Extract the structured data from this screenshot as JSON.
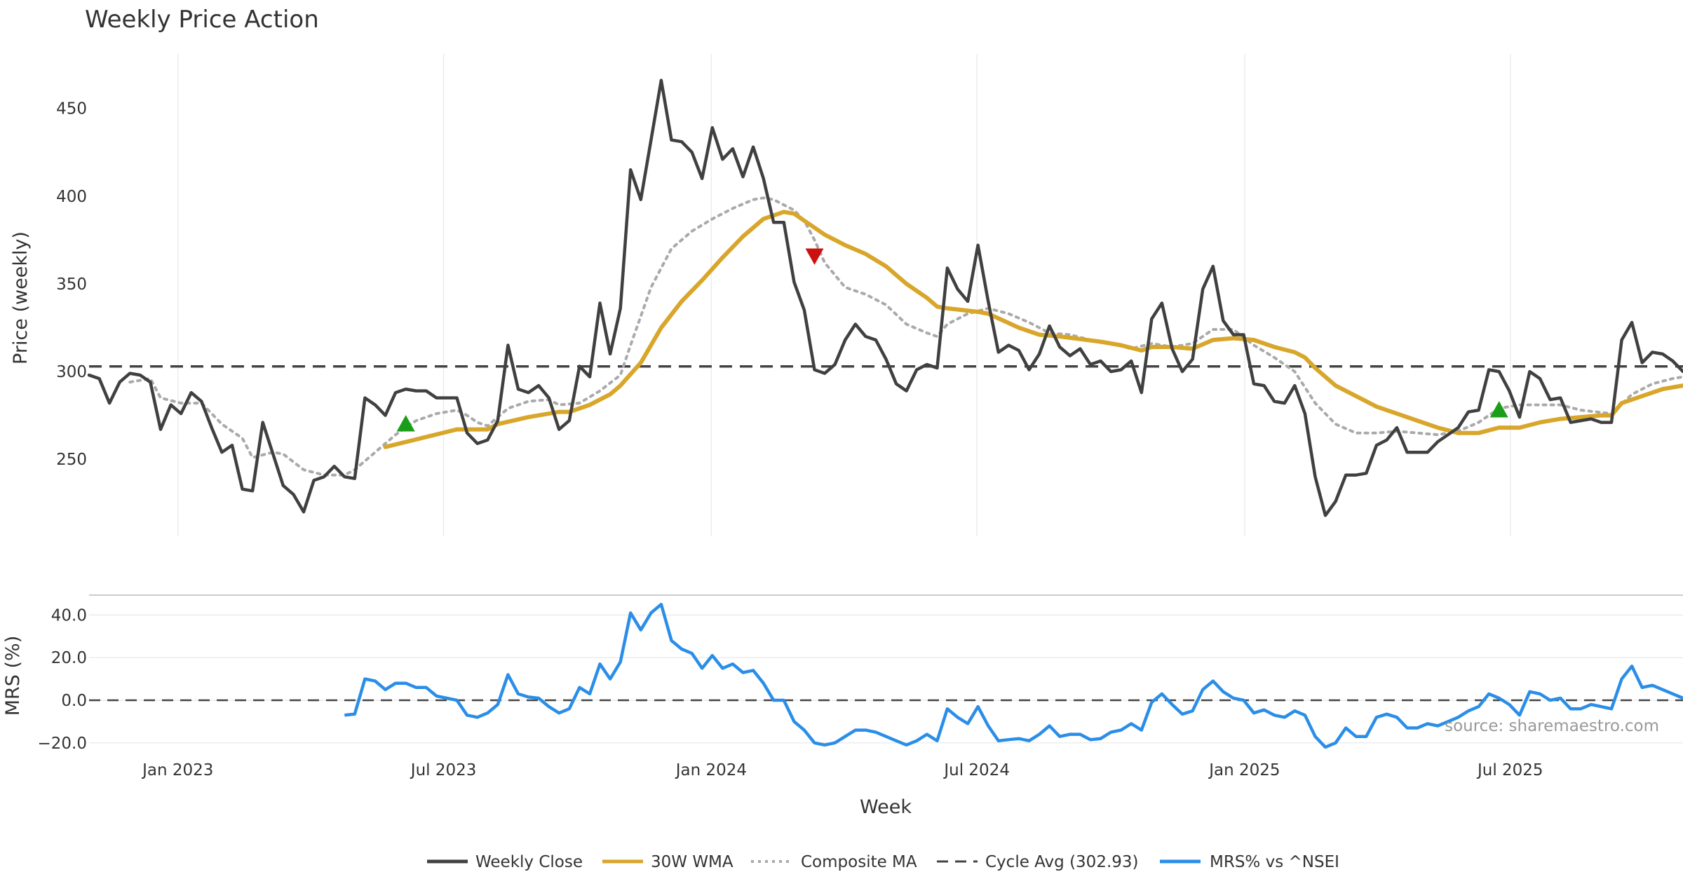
{
  "chart_data": [
    {
      "type": "line",
      "title": "Weekly Price Action",
      "ylabel": "Price (weekly)",
      "ylim": [
        210,
        475
      ],
      "yticks": [
        250,
        300,
        350,
        400,
        450
      ],
      "grid": "vertical",
      "x_unit": "week index",
      "xlim": [
        0,
        156
      ],
      "xticks": [
        {
          "label": "Jan 2023",
          "week": 8.7
        },
        {
          "label": "Jul 2023",
          "week": 34.7
        },
        {
          "label": "Jan 2024",
          "week": 60.9
        },
        {
          "label": "Jul 2024",
          "week": 86.9
        },
        {
          "label": "Jan 2025",
          "week": 113.1
        },
        {
          "label": "Jul 2025",
          "week": 139.1
        }
      ],
      "series": [
        {
          "name": "Weekly Close",
          "color": "#404040",
          "style": "solid",
          "values": [
            298,
            296,
            282,
            294,
            299,
            298,
            294,
            267,
            281,
            276,
            288,
            283,
            268,
            254,
            258,
            233,
            232,
            271,
            253,
            235,
            230,
            220,
            238,
            240,
            246,
            240,
            239,
            285,
            281,
            275,
            288,
            290,
            289,
            289,
            285,
            285,
            285,
            265,
            259,
            261,
            272,
            315,
            290,
            288,
            292,
            285,
            267,
            272,
            303,
            297,
            339,
            310,
            336,
            415,
            398,
            432,
            466,
            432,
            431,
            425,
            410,
            439,
            421,
            427,
            411,
            428,
            410,
            385,
            385,
            351,
            335,
            301,
            299,
            304,
            318,
            327,
            320,
            318,
            307,
            293,
            289,
            301,
            304,
            302,
            359,
            347,
            340,
            372,
            340,
            311,
            315,
            312,
            301,
            310,
            326,
            314,
            309,
            313,
            304,
            306,
            300,
            301,
            306,
            288,
            330,
            339,
            313,
            300,
            307,
            347,
            360,
            329,
            321,
            321,
            293,
            292,
            283,
            282,
            292,
            276,
            240,
            218,
            226,
            241,
            241,
            242,
            258,
            261,
            268,
            254,
            254,
            254,
            260,
            264,
            268,
            277,
            278,
            301,
            300,
            289,
            274,
            300,
            296,
            284,
            285,
            271,
            272,
            273,
            271,
            271,
            318,
            328,
            305,
            311,
            310,
            306,
            300
          ]
        },
        {
          "name": "30W WMA",
          "color": "#D8A62A",
          "style": "solid",
          "points": [
            [
              29,
              257
            ],
            [
              36,
              267
            ],
            [
              39,
              267
            ],
            [
              40,
              270
            ],
            [
              43,
              274
            ],
            [
              46,
              277
            ],
            [
              47,
              277
            ],
            [
              49,
              281
            ],
            [
              51,
              287
            ],
            [
              52,
              292
            ],
            [
              54,
              305
            ],
            [
              56,
              325
            ],
            [
              58,
              340
            ],
            [
              60,
              352
            ],
            [
              62,
              365
            ],
            [
              64,
              377
            ],
            [
              66,
              387
            ],
            [
              68,
              391
            ],
            [
              69,
              390
            ],
            [
              70,
              386
            ],
            [
              72,
              378
            ],
            [
              74,
              372
            ],
            [
              76,
              367
            ],
            [
              78,
              360
            ],
            [
              80,
              350
            ],
            [
              82,
              342
            ],
            [
              83,
              337
            ],
            [
              84,
              336
            ],
            [
              87,
              334
            ],
            [
              88,
              333
            ],
            [
              91,
              325
            ],
            [
              93,
              321
            ],
            [
              95,
              320
            ],
            [
              99,
              317
            ],
            [
              101,
              315
            ],
            [
              103,
              312
            ],
            [
              104,
              314
            ],
            [
              106,
              314
            ],
            [
              108,
              313
            ],
            [
              110,
              318
            ],
            [
              112,
              319
            ],
            [
              114,
              318
            ],
            [
              116,
              314
            ],
            [
              118,
              311
            ],
            [
              119,
              308
            ],
            [
              120,
              302
            ],
            [
              122,
              292
            ],
            [
              124,
              286
            ],
            [
              126,
              280
            ],
            [
              128,
              276
            ],
            [
              130,
              272
            ],
            [
              132,
              268
            ],
            [
              134,
              265
            ],
            [
              136,
              265
            ],
            [
              138,
              268
            ],
            [
              140,
              268
            ],
            [
              142,
              271
            ],
            [
              144,
              273
            ],
            [
              148,
              275
            ],
            [
              149,
              275
            ],
            [
              150,
              282
            ],
            [
              152,
              286
            ],
            [
              154,
              290
            ],
            [
              156,
              292
            ]
          ]
        },
        {
          "name": "Composite MA",
          "color": "#AAAAAA",
          "style": "dotted",
          "points": [
            [
              4,
              294
            ],
            [
              6,
              296
            ],
            [
              7,
              285
            ],
            [
              9,
              282
            ],
            [
              11,
              282
            ],
            [
              13,
              270
            ],
            [
              15,
              262
            ],
            [
              16,
              251
            ],
            [
              18,
              254
            ],
            [
              19,
              253
            ],
            [
              21,
              244
            ],
            [
              23,
              241
            ],
            [
              25,
              241
            ],
            [
              26,
              244
            ],
            [
              28,
              254
            ],
            [
              30,
              264
            ],
            [
              32,
              272
            ],
            [
              34,
              276
            ],
            [
              36,
              278
            ],
            [
              37,
              275
            ],
            [
              38,
              271
            ],
            [
              39,
              269
            ],
            [
              41,
              279
            ],
            [
              43,
              283
            ],
            [
              45,
              284
            ],
            [
              46,
              281
            ],
            [
              48,
              282
            ],
            [
              50,
              289
            ],
            [
              52,
              298
            ],
            [
              53,
              315
            ],
            [
              55,
              348
            ],
            [
              57,
              370
            ],
            [
              59,
              380
            ],
            [
              61,
              387
            ],
            [
              63,
              393
            ],
            [
              65,
              398
            ],
            [
              66,
              399
            ],
            [
              67,
              398
            ],
            [
              69,
              392
            ],
            [
              70,
              386
            ],
            [
              71,
              375
            ],
            [
              72,
              362
            ],
            [
              74,
              348
            ],
            [
              76,
              344
            ],
            [
              78,
              338
            ],
            [
              80,
              327
            ],
            [
              82,
              322
            ],
            [
              83,
              320
            ],
            [
              84,
              327
            ],
            [
              86,
              333
            ],
            [
              88,
              336
            ],
            [
              90,
              333
            ],
            [
              92,
              328
            ],
            [
              94,
              322
            ],
            [
              96,
              321
            ],
            [
              98,
              318
            ],
            [
              100,
              316
            ],
            [
              102,
              313
            ],
            [
              104,
              316
            ],
            [
              106,
              314
            ],
            [
              108,
              316
            ],
            [
              110,
              324
            ],
            [
              112,
              324
            ],
            [
              114,
              315
            ],
            [
              116,
              308
            ],
            [
              118,
              300
            ],
            [
              120,
              282
            ],
            [
              122,
              270
            ],
            [
              124,
              265
            ],
            [
              126,
              265
            ],
            [
              128,
              266
            ],
            [
              130,
              265
            ],
            [
              132,
              264
            ],
            [
              134,
              266
            ],
            [
              136,
              271
            ],
            [
              138,
              279
            ],
            [
              140,
              281
            ],
            [
              142,
              281
            ],
            [
              144,
              281
            ],
            [
              146,
              278
            ],
            [
              149,
              276
            ],
            [
              151,
              287
            ],
            [
              153,
              293
            ],
            [
              155,
              296
            ],
            [
              156,
              297
            ]
          ]
        },
        {
          "name": "Cycle Avg (302.93)",
          "color": "#444444",
          "style": "dashed",
          "value": 302.93
        }
      ],
      "markers": [
        {
          "type": "buy",
          "shape": "triangle-up",
          "color": "#1A9E1A",
          "week": 31,
          "price": 270
        },
        {
          "type": "sell",
          "shape": "triangle-down",
          "color": "#CC1111",
          "week": 71,
          "price": 366
        },
        {
          "type": "buy",
          "shape": "triangle-up",
          "color": "#1A9E1A",
          "week": 138,
          "price": 278
        }
      ]
    },
    {
      "type": "line",
      "ylabel": "MRS (%)",
      "xlabel": "Week",
      "ylim": [
        -25,
        47
      ],
      "yticks": [
        {
          "v": -20,
          "label": "−20.0"
        },
        {
          "v": 0,
          "label": "0.0"
        },
        {
          "v": 20,
          "label": "20.0"
        },
        {
          "v": 40,
          "label": "40.0"
        }
      ],
      "grid": "horizontal",
      "zero_line": 0,
      "series": [
        {
          "name": "MRS% vs ^NSEI",
          "color": "#2A8EE8",
          "style": "solid",
          "start_week": 25,
          "values": [
            -7,
            -6.5,
            10,
            9,
            5,
            8,
            8,
            6,
            6,
            2,
            1,
            0,
            -7,
            -8,
            -6,
            -2,
            12,
            3,
            1.5,
            1,
            -3,
            -6,
            -4,
            6,
            3,
            17,
            10,
            18,
            41,
            33,
            41,
            45,
            28,
            24,
            22,
            15,
            21,
            15,
            17,
            13,
            14,
            8,
            0,
            0,
            -10,
            -14,
            -20,
            -21,
            -20,
            -17,
            -14,
            -14,
            -15,
            -17,
            -19,
            -21,
            -19,
            -16,
            -19,
            -4,
            -8,
            -11,
            -3,
            -12,
            -19,
            -18.5,
            -18,
            -19,
            -16,
            -12,
            -17,
            -16,
            -16,
            -18.5,
            -18,
            -15,
            -14,
            -11,
            -14,
            -1,
            3,
            -2,
            -6.5,
            -5,
            5,
            9,
            4,
            1,
            0,
            -6,
            -4.5,
            -7,
            -8,
            -5,
            -7,
            -17,
            -22,
            -20,
            -13,
            -17,
            -17,
            -8,
            -6.5,
            -8,
            -13,
            -13,
            -11,
            -12,
            -10,
            -8,
            -5,
            -3,
            3,
            1,
            -2,
            -7,
            4,
            3,
            0,
            1,
            -4,
            -4,
            -2,
            -3,
            -4,
            10,
            16,
            6,
            7,
            5,
            3,
            1
          ]
        }
      ]
    }
  ],
  "source": "source: sharemaestro.com"
}
